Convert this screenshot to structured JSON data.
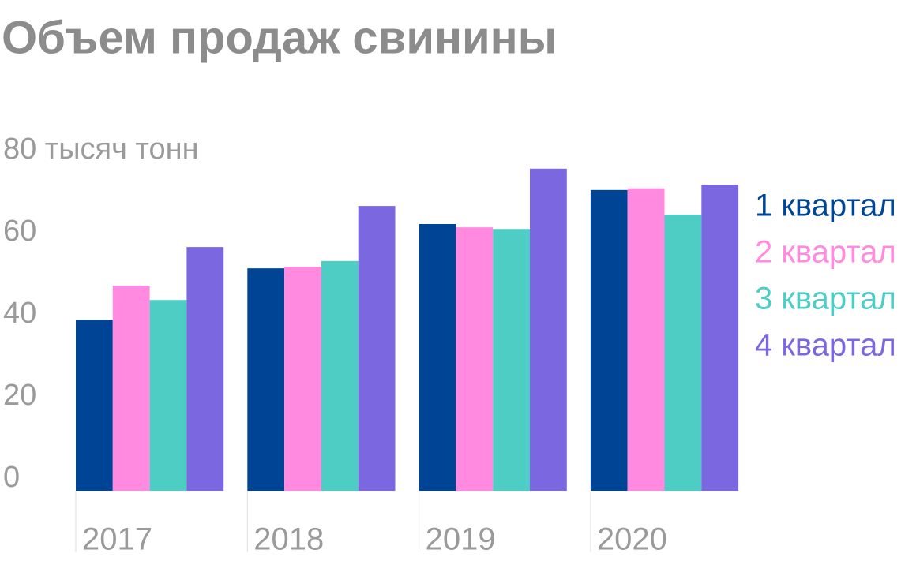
{
  "chart_data": {
    "type": "bar",
    "title": "Объем продаж свинины",
    "categories": [
      "2017",
      "2018",
      "2019",
      "2020"
    ],
    "series": [
      {
        "name": "1 квартал",
        "color": "#004595",
        "values": [
          41.7,
          54.2,
          65,
          73.3
        ]
      },
      {
        "name": "2 квартал",
        "color": "#ff8ae0",
        "values": [
          50,
          54.6,
          64.2,
          73.7
        ]
      },
      {
        "name": "3 квартал",
        "color": "#4ecdc4",
        "values": [
          46.5,
          56,
          63.8,
          67.3
        ]
      },
      {
        "name": "4 квартал",
        "color": "#7b68e0",
        "values": [
          59.4,
          69.4,
          78.5,
          74.6
        ]
      }
    ],
    "ylim": [
      0,
      80
    ],
    "yticks": [
      0,
      20,
      40,
      60,
      {
        "value": 80,
        "label": "80 тысяч тонн"
      }
    ],
    "legend": "right"
  }
}
